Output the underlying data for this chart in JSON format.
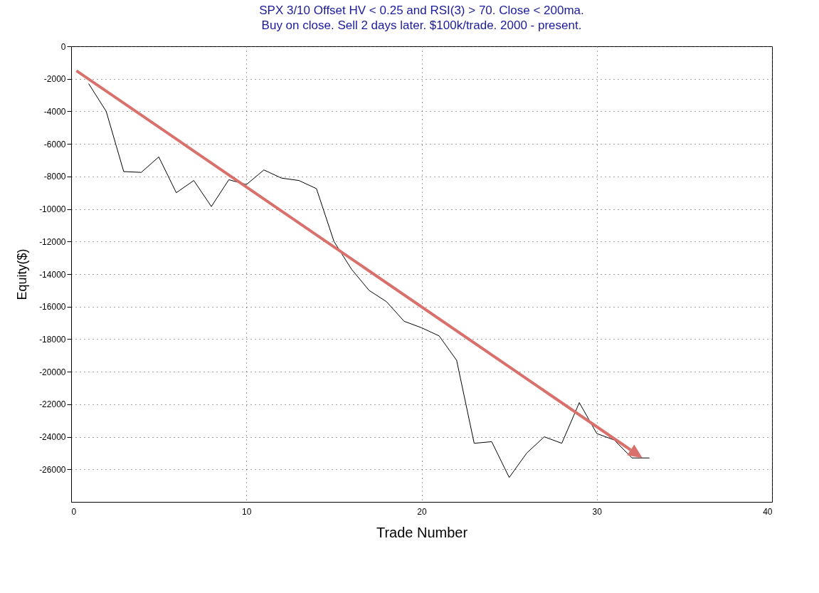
{
  "chart_data": {
    "type": "line",
    "title": "SPX 3/10 Offset HV < 0.25 and RSI(3) > 70. Close < 200ma.",
    "subtitle": "Buy on close. Sell 2 days later. $100k/trade. 2000 - present.",
    "xlabel": "Trade Number",
    "ylabel": "Equity($)",
    "x": [
      1,
      2,
      3,
      4,
      5,
      6,
      7,
      8,
      9,
      10,
      11,
      12,
      13,
      14,
      15,
      16,
      17,
      18,
      19,
      20,
      21,
      22,
      23,
      24,
      25,
      26,
      27,
      28,
      29,
      30,
      31,
      32,
      33
    ],
    "series": [
      {
        "color": "#000000",
        "values": [
          -2300,
          -4000,
          -7700,
          -7750,
          -6800,
          -9000,
          -8250,
          -9850,
          -8200,
          -8500,
          -7600,
          -8100,
          -8250,
          -8750,
          -12000,
          -13700,
          -15000,
          -15700,
          -16900,
          -17300,
          -17800,
          -19300,
          -24400,
          -24300,
          -26500,
          -25000,
          -24000,
          -24400,
          -21900,
          -23800,
          -24200,
          -25300,
          -25300
        ]
      }
    ],
    "xlim": [
      0,
      40
    ],
    "xticks": [
      0,
      10,
      20,
      30,
      40
    ],
    "ylim": [
      -28000,
      0
    ],
    "yticks": [
      0,
      -2000,
      -4000,
      -6000,
      -8000,
      -10000,
      -12000,
      -14000,
      -16000,
      -18000,
      -20000,
      -22000,
      -24000,
      -26000
    ],
    "grid": true,
    "marker": "none",
    "line_style": "solid"
  }
}
